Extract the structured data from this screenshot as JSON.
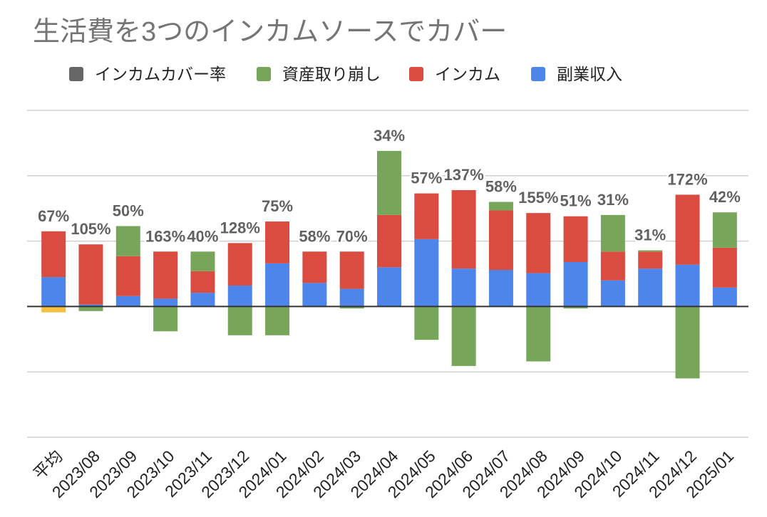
{
  "chart_data": {
    "type": "bar",
    "stacked": true,
    "title": "生活費を3つのインカムソースでカバー",
    "categories": [
      "平均",
      "2023/08",
      "2023/09",
      "2023/10",
      "2023/11",
      "2023/12",
      "2024/01",
      "2024/02",
      "2024/03",
      "2024/04",
      "2024/05",
      "2024/06",
      "2024/07",
      "2024/08",
      "2024/09",
      "2024/10",
      "2024/11",
      "2024/12",
      "2025/01"
    ],
    "ylim": [
      -2,
      3
    ],
    "grid": true,
    "legend": "top",
    "data_labels": {
      "name": "インカムカバー率",
      "color": "#666666",
      "unit": "%",
      "values": [
        67,
        105,
        50,
        163,
        40,
        128,
        75,
        58,
        70,
        34,
        57,
        137,
        58,
        155,
        51,
        31,
        31,
        172,
        42
      ]
    },
    "series": [
      {
        "name": "資産取り崩し",
        "color": "#77a65b",
        "point_colors": {
          "平均": "#f6c142"
        },
        "values": [
          -0.09,
          -0.07,
          0.46,
          -0.38,
          0.3,
          -0.44,
          -0.44,
          -0.01,
          -0.03,
          0.98,
          -0.51,
          -0.91,
          0.13,
          -0.84,
          -0.03,
          0.56,
          0.02,
          -1.1,
          0.54
        ]
      },
      {
        "name": "インカム",
        "color": "#da4c3f",
        "values": [
          0.7,
          0.92,
          0.61,
          0.72,
          0.33,
          0.65,
          0.64,
          0.48,
          0.57,
          0.8,
          0.7,
          1.2,
          0.91,
          0.92,
          0.7,
          0.44,
          0.26,
          1.07,
          0.61
        ]
      },
      {
        "name": "副業収入",
        "color": "#4e85eb",
        "values": [
          0.45,
          0.03,
          0.16,
          0.12,
          0.21,
          0.32,
          0.66,
          0.36,
          0.27,
          0.6,
          1.03,
          0.58,
          0.56,
          0.51,
          0.68,
          0.4,
          0.58,
          0.64,
          0.29
        ]
      }
    ]
  }
}
